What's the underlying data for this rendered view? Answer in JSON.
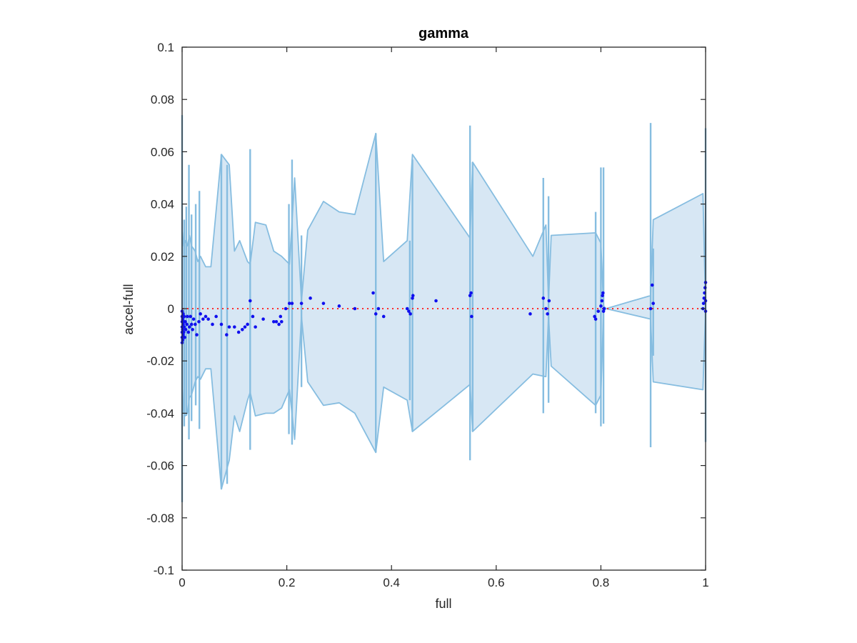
{
  "chart_data": {
    "type": "scatter",
    "title": "gamma",
    "xlabel": "full",
    "ylabel": "accel-full",
    "xlim": [
      0,
      1
    ],
    "ylim": [
      -0.1,
      0.1
    ],
    "x_ticks": [
      "0",
      "0.2",
      "0.4",
      "0.6",
      "0.8",
      "1"
    ],
    "x_tick_values": [
      0,
      0.2,
      0.4,
      0.6,
      0.8,
      1
    ],
    "y_ticks": [
      "0.1",
      "0.08",
      "0.06",
      "0.04",
      "0.02",
      "0",
      "-0.02",
      "-0.04",
      "-0.06",
      "-0.08",
      "-0.1"
    ],
    "y_tick_values": [
      0.1,
      0.08,
      0.06,
      0.04,
      0.02,
      0,
      -0.02,
      -0.04,
      -0.06,
      -0.08,
      -0.1
    ],
    "reference_line_y": 0,
    "band_color": "#d7e7f4",
    "band_edge_color": "#86bde0",
    "point_color": "#1010ee",
    "reference_color": "#ff2a2a",
    "band_upper": [
      [
        0.0,
        0.03
      ],
      [
        0.003,
        0.024
      ],
      [
        0.006,
        0.026
      ],
      [
        0.01,
        0.024
      ],
      [
        0.014,
        0.028
      ],
      [
        0.018,
        0.024
      ],
      [
        0.025,
        0.022
      ],
      [
        0.03,
        0.018
      ],
      [
        0.035,
        0.02
      ],
      [
        0.045,
        0.016
      ],
      [
        0.055,
        0.016
      ],
      [
        0.075,
        0.059
      ],
      [
        0.09,
        0.055
      ],
      [
        0.1,
        0.022
      ],
      [
        0.11,
        0.026
      ],
      [
        0.125,
        0.018
      ],
      [
        0.13,
        0.017
      ],
      [
        0.14,
        0.033
      ],
      [
        0.16,
        0.032
      ],
      [
        0.175,
        0.022
      ],
      [
        0.19,
        0.02
      ],
      [
        0.205,
        0.017
      ],
      [
        0.215,
        0.05
      ],
      [
        0.228,
        0.003
      ],
      [
        0.24,
        0.03
      ],
      [
        0.27,
        0.041
      ],
      [
        0.3,
        0.037
      ],
      [
        0.33,
        0.036
      ],
      [
        0.37,
        0.067
      ],
      [
        0.385,
        0.018
      ],
      [
        0.43,
        0.026
      ],
      [
        0.44,
        0.059
      ],
      [
        0.55,
        0.027
      ],
      [
        0.555,
        0.056
      ],
      [
        0.67,
        0.02
      ],
      [
        0.695,
        0.032
      ],
      [
        0.7,
        0.003
      ],
      [
        0.705,
        0.028
      ],
      [
        0.79,
        0.029
      ],
      [
        0.8,
        0.025
      ],
      [
        0.805,
        0.001
      ],
      [
        0.81,
        0.0
      ],
      [
        0.895,
        0.005
      ],
      [
        0.9,
        0.034
      ],
      [
        0.995,
        0.044
      ],
      [
        1.0,
        0.0
      ]
    ],
    "band_lower": [
      [
        0.0,
        -0.03
      ],
      [
        0.003,
        -0.04
      ],
      [
        0.006,
        -0.041
      ],
      [
        0.01,
        -0.04
      ],
      [
        0.014,
        -0.034
      ],
      [
        0.018,
        -0.033
      ],
      [
        0.025,
        -0.028
      ],
      [
        0.03,
        -0.026
      ],
      [
        0.035,
        -0.027
      ],
      [
        0.045,
        -0.023
      ],
      [
        0.055,
        -0.023
      ],
      [
        0.075,
        -0.069
      ],
      [
        0.09,
        -0.058
      ],
      [
        0.1,
        -0.041
      ],
      [
        0.11,
        -0.047
      ],
      [
        0.125,
        -0.035
      ],
      [
        0.13,
        -0.032
      ],
      [
        0.14,
        -0.041
      ],
      [
        0.16,
        -0.04
      ],
      [
        0.175,
        -0.04
      ],
      [
        0.19,
        -0.038
      ],
      [
        0.205,
        -0.031
      ],
      [
        0.215,
        -0.05
      ],
      [
        0.228,
        -0.003
      ],
      [
        0.24,
        -0.028
      ],
      [
        0.27,
        -0.037
      ],
      [
        0.3,
        -0.036
      ],
      [
        0.33,
        -0.04
      ],
      [
        0.37,
        -0.055
      ],
      [
        0.385,
        -0.03
      ],
      [
        0.43,
        -0.035
      ],
      [
        0.44,
        -0.047
      ],
      [
        0.55,
        -0.029
      ],
      [
        0.555,
        -0.047
      ],
      [
        0.67,
        -0.025
      ],
      [
        0.695,
        -0.026
      ],
      [
        0.7,
        -0.003
      ],
      [
        0.705,
        -0.022
      ],
      [
        0.79,
        -0.037
      ],
      [
        0.8,
        -0.033
      ],
      [
        0.805,
        -0.001
      ],
      [
        0.81,
        0.0
      ],
      [
        0.895,
        -0.004
      ],
      [
        0.9,
        -0.028
      ],
      [
        0.995,
        -0.031
      ],
      [
        1.0,
        0.0
      ]
    ],
    "spikes": [
      [
        0.0,
        -0.074,
        0.074
      ],
      [
        0.004,
        -0.045,
        0.034
      ],
      [
        0.008,
        -0.041,
        0.039
      ],
      [
        0.013,
        -0.05,
        0.055
      ],
      [
        0.018,
        -0.043,
        0.036
      ],
      [
        0.026,
        -0.037,
        0.04
      ],
      [
        0.033,
        -0.046,
        0.045
      ],
      [
        0.075,
        -0.069,
        0.059
      ],
      [
        0.086,
        -0.067,
        0.055
      ],
      [
        0.13,
        -0.054,
        0.061
      ],
      [
        0.204,
        -0.048,
        0.04
      ],
      [
        0.21,
        -0.052,
        0.057
      ],
      [
        0.228,
        -0.03,
        0.028
      ],
      [
        0.37,
        -0.055,
        0.067
      ],
      [
        0.435,
        -0.035,
        0.026
      ],
      [
        0.44,
        -0.047,
        0.057
      ],
      [
        0.55,
        -0.058,
        0.07
      ],
      [
        0.555,
        -0.047,
        0.056
      ],
      [
        0.69,
        -0.04,
        0.05
      ],
      [
        0.7,
        -0.036,
        0.043
      ],
      [
        0.79,
        -0.04,
        0.037
      ],
      [
        0.8,
        -0.045,
        0.054
      ],
      [
        0.805,
        -0.044,
        0.054
      ],
      [
        0.895,
        -0.053,
        0.071
      ],
      [
        0.9,
        -0.018,
        0.023
      ],
      [
        1.0,
        -0.051,
        0.069
      ]
    ],
    "points": [
      [
        0.0,
        -0.013
      ],
      [
        0.0,
        -0.011
      ],
      [
        0.0,
        -0.009
      ],
      [
        0.0,
        -0.007
      ],
      [
        0.0,
        -0.005
      ],
      [
        0.0,
        -0.003
      ],
      [
        0.0,
        -0.001
      ],
      [
        0.001,
        -0.012
      ],
      [
        0.001,
        -0.008
      ],
      [
        0.001,
        -0.004
      ],
      [
        0.002,
        -0.01
      ],
      [
        0.002,
        -0.006
      ],
      [
        0.002,
        -0.002
      ],
      [
        0.003,
        -0.009
      ],
      [
        0.003,
        -0.005
      ],
      [
        0.004,
        -0.007
      ],
      [
        0.004,
        -0.003
      ],
      [
        0.005,
        -0.011
      ],
      [
        0.006,
        -0.005
      ],
      [
        0.007,
        -0.008
      ],
      [
        0.009,
        -0.006
      ],
      [
        0.01,
        -0.003
      ],
      [
        0.012,
        -0.009
      ],
      [
        0.014,
        -0.007
      ],
      [
        0.016,
        -0.003
      ],
      [
        0.018,
        -0.006
      ],
      [
        0.02,
        -0.008
      ],
      [
        0.022,
        -0.004
      ],
      [
        0.025,
        -0.006
      ],
      [
        0.028,
        -0.01
      ],
      [
        0.032,
        -0.005
      ],
      [
        0.035,
        -0.002
      ],
      [
        0.04,
        -0.004
      ],
      [
        0.045,
        -0.003
      ],
      [
        0.05,
        -0.004
      ],
      [
        0.058,
        -0.006
      ],
      [
        0.065,
        -0.003
      ],
      [
        0.075,
        -0.006
      ],
      [
        0.085,
        -0.01
      ],
      [
        0.09,
        -0.007
      ],
      [
        0.1,
        -0.007
      ],
      [
        0.108,
        -0.009
      ],
      [
        0.115,
        -0.008
      ],
      [
        0.12,
        -0.007
      ],
      [
        0.125,
        -0.006
      ],
      [
        0.13,
        0.003
      ],
      [
        0.135,
        -0.003
      ],
      [
        0.14,
        -0.007
      ],
      [
        0.155,
        -0.004
      ],
      [
        0.175,
        -0.005
      ],
      [
        0.18,
        -0.005
      ],
      [
        0.185,
        -0.006
      ],
      [
        0.188,
        -0.003
      ],
      [
        0.19,
        -0.005
      ],
      [
        0.198,
        0.0
      ],
      [
        0.205,
        0.002
      ],
      [
        0.21,
        0.002
      ],
      [
        0.228,
        0.002
      ],
      [
        0.245,
        0.004
      ],
      [
        0.27,
        0.002
      ],
      [
        0.3,
        0.001
      ],
      [
        0.33,
        0.0
      ],
      [
        0.365,
        0.006
      ],
      [
        0.37,
        -0.002
      ],
      [
        0.375,
        0.0
      ],
      [
        0.385,
        -0.003
      ],
      [
        0.43,
        0.0
      ],
      [
        0.433,
        -0.001
      ],
      [
        0.436,
        -0.002
      ],
      [
        0.44,
        0.004
      ],
      [
        0.441,
        0.005
      ],
      [
        0.485,
        0.003
      ],
      [
        0.55,
        0.005
      ],
      [
        0.552,
        0.006
      ],
      [
        0.553,
        -0.003
      ],
      [
        0.665,
        -0.002
      ],
      [
        0.69,
        0.004
      ],
      [
        0.695,
        0.0
      ],
      [
        0.698,
        -0.002
      ],
      [
        0.701,
        0.003
      ],
      [
        0.788,
        -0.003
      ],
      [
        0.79,
        -0.004
      ],
      [
        0.795,
        -0.001
      ],
      [
        0.8,
        0.001
      ],
      [
        0.802,
        0.003
      ],
      [
        0.803,
        0.005
      ],
      [
        0.804,
        0.006
      ],
      [
        0.805,
        -0.001
      ],
      [
        0.806,
        0.0
      ],
      [
        0.895,
        0.0
      ],
      [
        0.898,
        0.009
      ],
      [
        0.9,
        0.002
      ],
      [
        0.995,
        0.0
      ],
      [
        0.996,
        0.002
      ],
      [
        0.997,
        0.004
      ],
      [
        0.998,
        0.006
      ],
      [
        0.999,
        0.008
      ],
      [
        1.0,
        0.01
      ],
      [
        1.0,
        -0.001
      ],
      [
        1.0,
        0.003
      ]
    ]
  }
}
